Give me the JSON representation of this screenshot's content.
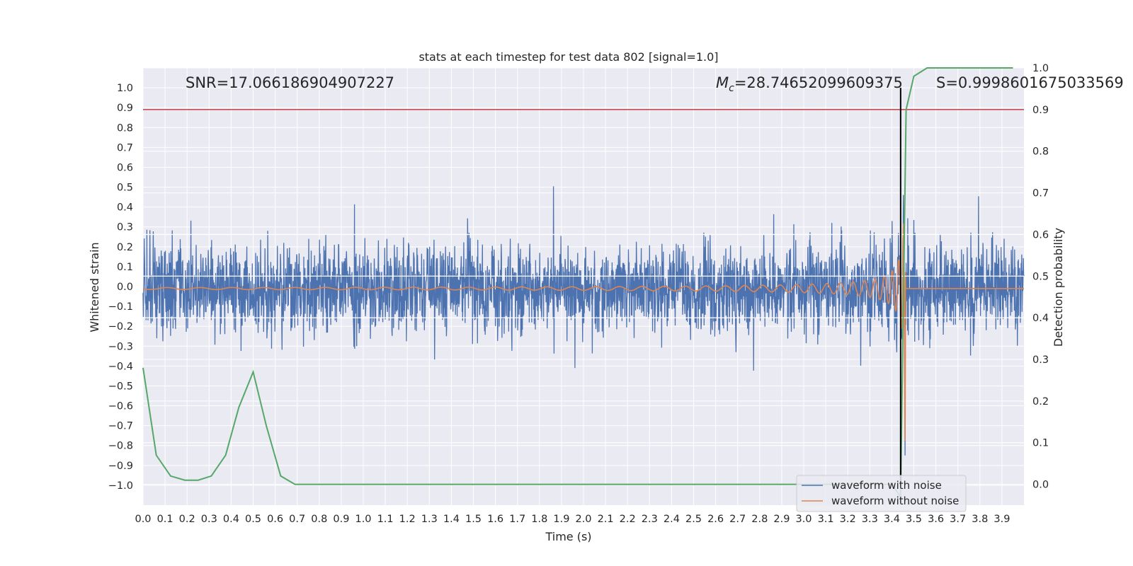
{
  "chart_data": {
    "type": "line",
    "title": "stats at each timestep for test data 802 [signal=1.0]",
    "xlabel": "Time (s)",
    "ylabel": "Whitened strain",
    "y2label": "Detection probability",
    "xlim": [
      0.0,
      4.0
    ],
    "ylim": [
      -1.1,
      1.1
    ],
    "y2lim": [
      -0.05,
      1.0
    ],
    "x_ticks": [
      "0.0",
      "0.1",
      "0.2",
      "0.3",
      "0.4",
      "0.5",
      "0.6",
      "0.7",
      "0.8",
      "0.9",
      "1.0",
      "1.1",
      "1.2",
      "1.3",
      "1.4",
      "1.5",
      "1.6",
      "1.7",
      "1.8",
      "1.9",
      "2.0",
      "2.1",
      "2.2",
      "2.3",
      "2.4",
      "2.5",
      "2.6",
      "2.7",
      "2.8",
      "2.9",
      "3.0",
      "3.1",
      "3.2",
      "3.3",
      "3.4",
      "3.5",
      "3.6",
      "3.7",
      "3.8",
      "3.9"
    ],
    "y_ticks": [
      "1.0",
      "0.9",
      "0.8",
      "0.7",
      "0.6",
      "0.5",
      "0.4",
      "0.3",
      "0.2",
      "0.1",
      "0.0",
      "−0.1",
      "−0.2",
      "−0.3",
      "−0.4",
      "−0.5",
      "−0.6",
      "−0.7",
      "−0.8",
      "−0.9",
      "−1.0"
    ],
    "y2_ticks": [
      "1.0",
      "0.9",
      "0.8",
      "0.7",
      "0.6",
      "0.5",
      "0.4",
      "0.3",
      "0.2",
      "0.1",
      "0.0"
    ],
    "annotations": {
      "snr": "SNR=17.066186904907227",
      "mc_symbol": "M",
      "mc_sub": "c",
      "mc_value": "=28.74652099609375",
      "s": "S=0.9998601675033569"
    },
    "threshold_y2": 0.9,
    "merger_time": 3.44,
    "series": [
      {
        "name": "waveform with noise",
        "color": "#4c72b0",
        "kind": "noise",
        "x_range": [
          0.0,
          4.0
        ],
        "amplitude_typical": 0.3,
        "peak_range": [
          -0.85,
          0.72
        ]
      },
      {
        "name": "waveform without noise",
        "color": "#dd8452",
        "kind": "chirp",
        "x_range": [
          0.0,
          4.0
        ],
        "merger_time": 3.45,
        "peak_range": [
          -0.85,
          0.82
        ]
      },
      {
        "color": "#55a868",
        "kind": "probability",
        "axis": "right",
        "x": [
          0.0,
          0.06,
          0.125,
          0.19,
          0.25,
          0.31,
          0.375,
          0.435,
          0.5,
          0.56,
          0.625,
          0.69,
          3.4,
          3.44,
          3.465,
          3.5,
          3.56,
          3.95
        ],
        "y": [
          0.28,
          0.07,
          0.02,
          0.01,
          0.01,
          0.02,
          0.07,
          0.185,
          0.27,
          0.14,
          0.02,
          0.0,
          0.0,
          -0.03,
          0.9,
          0.98,
          1.0,
          1.0
        ]
      }
    ],
    "colors": {
      "background": "#eaeaf2",
      "grid": "#ffffff",
      "threshold": "#c44e52",
      "merger_marker": "#000000"
    },
    "legend": {
      "position": "lower-right",
      "entries": [
        "waveform with noise",
        "waveform without noise"
      ]
    },
    "grid": true
  }
}
